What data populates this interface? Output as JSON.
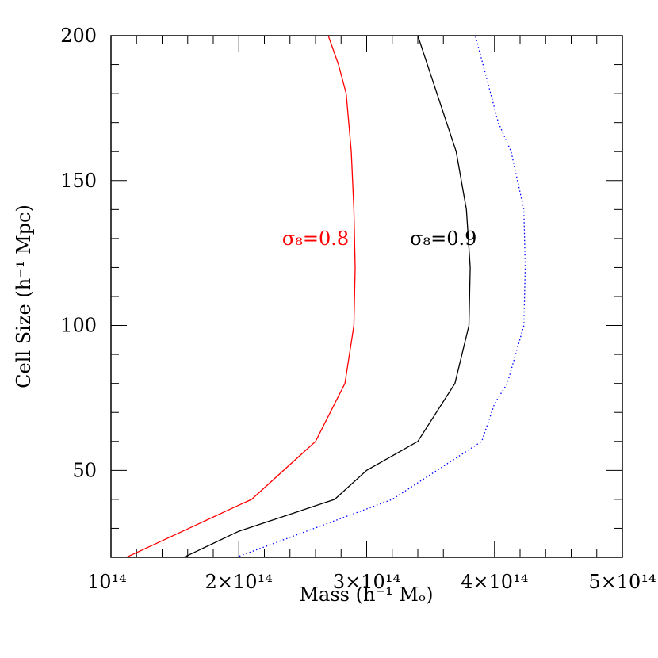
{
  "chart_data": {
    "type": "line",
    "xlabel": "Mass (h⁻¹ Mₒ)",
    "ylabel": "Cell Size (h⁻¹ Mpc)",
    "xlim": [
      1.0,
      5.0
    ],
    "ylim": [
      20,
      200
    ],
    "x_unit_note": "x in units of 10^14",
    "x_ticks": [
      {
        "value": 1,
        "label": "10¹⁴"
      },
      {
        "value": 2,
        "label": "2×10¹⁴"
      },
      {
        "value": 3,
        "label": "3×10¹⁴"
      },
      {
        "value": 4,
        "label": "4×10¹⁴"
      },
      {
        "value": 5,
        "label": "5×10¹⁴"
      }
    ],
    "y_ticks": [
      {
        "value": 50,
        "label": "50"
      },
      {
        "value": 100,
        "label": "100"
      },
      {
        "value": 150,
        "label": "150"
      },
      {
        "value": 200,
        "label": "200"
      }
    ],
    "grid": false,
    "legend": "none",
    "series": [
      {
        "label_text": "σ₈=0.8",
        "color": "#ff0000",
        "style": "solid",
        "label_at": {
          "x": 2.6,
          "y": 130
        },
        "x": [
          1.0,
          1.12,
          2.0,
          2.1,
          2.6,
          2.83,
          2.9,
          2.91,
          2.9,
          2.88,
          2.84,
          2.78,
          2.7
        ],
        "y": [
          12,
          20,
          38,
          40,
          60,
          80,
          100,
          120,
          140,
          160,
          180,
          190,
          200
        ]
      },
      {
        "label_text": "σ₈=0.9",
        "color": "#000000",
        "style": "solid",
        "label_at": {
          "x": 3.6,
          "y": 130
        },
        "x": [
          1.2,
          1.57,
          2.0,
          2.75,
          3.0,
          3.4,
          3.69,
          3.8,
          3.81,
          3.78,
          3.7,
          3.55,
          3.4
        ],
        "y": [
          12,
          20,
          29,
          40,
          50,
          60,
          80,
          100,
          120,
          140,
          160,
          180,
          200
        ]
      },
      {
        "label_text": "",
        "color": "#0000ff",
        "style": "dotted",
        "label_at": null,
        "x": [
          1.6,
          1.98,
          3.2,
          3.9,
          4.0,
          4.1,
          4.23,
          4.24,
          4.23,
          4.13,
          4.03,
          3.97,
          3.85
        ],
        "y": [
          12,
          20,
          40,
          60,
          73,
          80,
          100,
          120,
          140,
          160,
          170,
          180,
          200
        ]
      }
    ]
  }
}
